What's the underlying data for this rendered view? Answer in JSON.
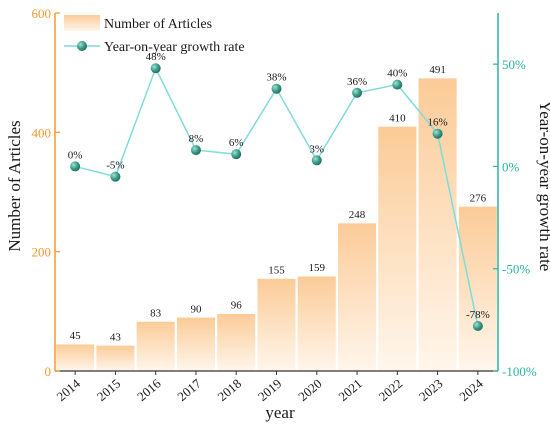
{
  "chart_data": {
    "type": "bar",
    "categories": [
      "2014",
      "2015",
      "2016",
      "2017",
      "2018",
      "2019",
      "2020",
      "2021",
      "2022",
      "2023",
      "2024"
    ],
    "series": [
      {
        "name": "Number of Articles",
        "type": "bar",
        "axis": "left",
        "values": [
          45,
          43,
          83,
          90,
          96,
          155,
          159,
          248,
          410,
          491,
          276
        ],
        "labels": [
          "45",
          "43",
          "83",
          "90",
          "96",
          "155",
          "159",
          "248",
          "410",
          "491",
          "276"
        ]
      },
      {
        "name": "Year-on-year growth rate",
        "type": "line",
        "axis": "right",
        "values": [
          0,
          -5,
          48,
          8,
          6,
          38,
          3,
          36,
          40,
          16,
          -78
        ],
        "labels": [
          "0%",
          "-5%",
          "48%",
          "8%",
          "6%",
          "38%",
          "3%",
          "36%",
          "40%",
          "16%",
          "-78%"
        ]
      }
    ],
    "xlabel": "year",
    "ylabel": "Number of Articles",
    "y2label": "Year-on-year growth rate",
    "ylim": [
      0,
      600
    ],
    "y2lim": [
      -100,
      75
    ],
    "yticks": [
      "0",
      "200",
      "400",
      "600"
    ],
    "y2ticks": [
      "-100%",
      "-50%",
      "0%",
      "50%"
    ],
    "legend_position": "top-left",
    "grid": false,
    "colors": {
      "bar_top": "#fbcb97",
      "bar_bottom": "#fff6ec",
      "line": "#7fdcdc",
      "marker": "#3d9c8a",
      "left_axis": "#f39a2e",
      "right_axis": "#2bb3a3",
      "text": "#1a1a1a"
    }
  }
}
